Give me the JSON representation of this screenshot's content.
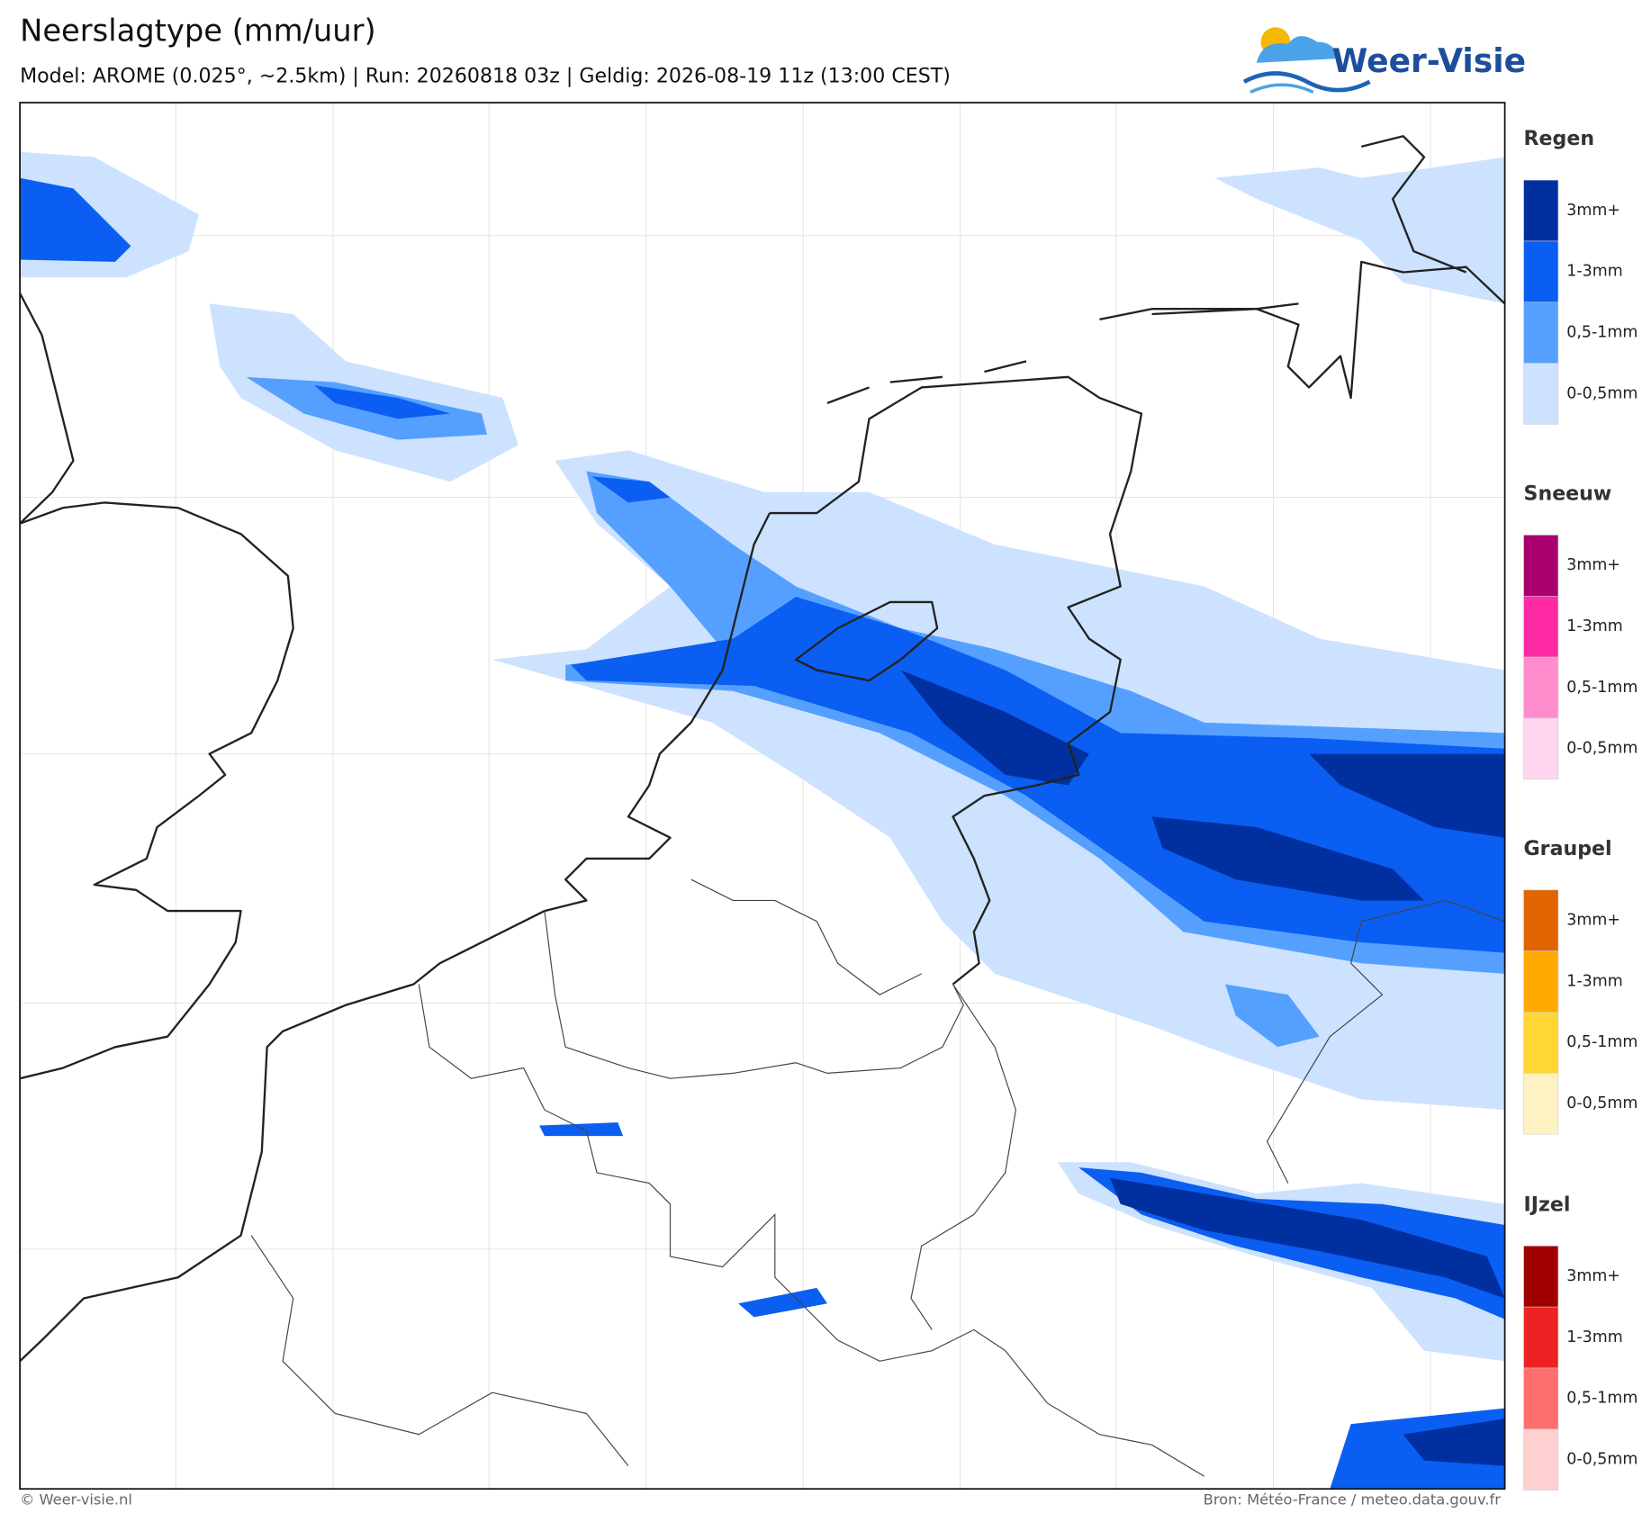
{
  "header": {
    "title": "Neerslagtype (mm/uur)",
    "subtitle": "Model: AROME (0.025°, ~2.5km)  |  Run: 20260818 03z  |  Geldig: 2026-08-19 11z (13:00 CEST)",
    "logo": "Weer-Visie"
  },
  "legend": [
    {
      "name": "Regen",
      "levels": [
        "3mm+",
        "1-3mm",
        "0,5-1mm",
        "0-0,5mm"
      ],
      "colors": [
        "#0030a0",
        "#0a5ef2",
        "#55a0ff",
        "#cce2ff"
      ]
    },
    {
      "name": "Sneeuw",
      "levels": [
        "3mm+",
        "1-3mm",
        "0,5-1mm",
        "0-0,5mm"
      ],
      "colors": [
        "#a8006e",
        "#ff2aa6",
        "#ff8ccc",
        "#ffd6ee"
      ]
    },
    {
      "name": "Graupel",
      "levels": [
        "3mm+",
        "1-3mm",
        "0,5-1mm",
        "0-0,5mm"
      ],
      "colors": [
        "#e06400",
        "#ffaa00",
        "#ffd633",
        "#fff2c2"
      ]
    },
    {
      "name": "IJzel",
      "levels": [
        "3mm+",
        "1-3mm",
        "0,5-1mm",
        "0-0,5mm"
      ],
      "colors": [
        "#a00000",
        "#ee2222",
        "#ff6e6e",
        "#ffd0d0"
      ]
    }
  ],
  "footer": {
    "left": "© Weer-visie.nl",
    "right": "Bron: Météo-France / meteo.data.gouv.fr"
  }
}
